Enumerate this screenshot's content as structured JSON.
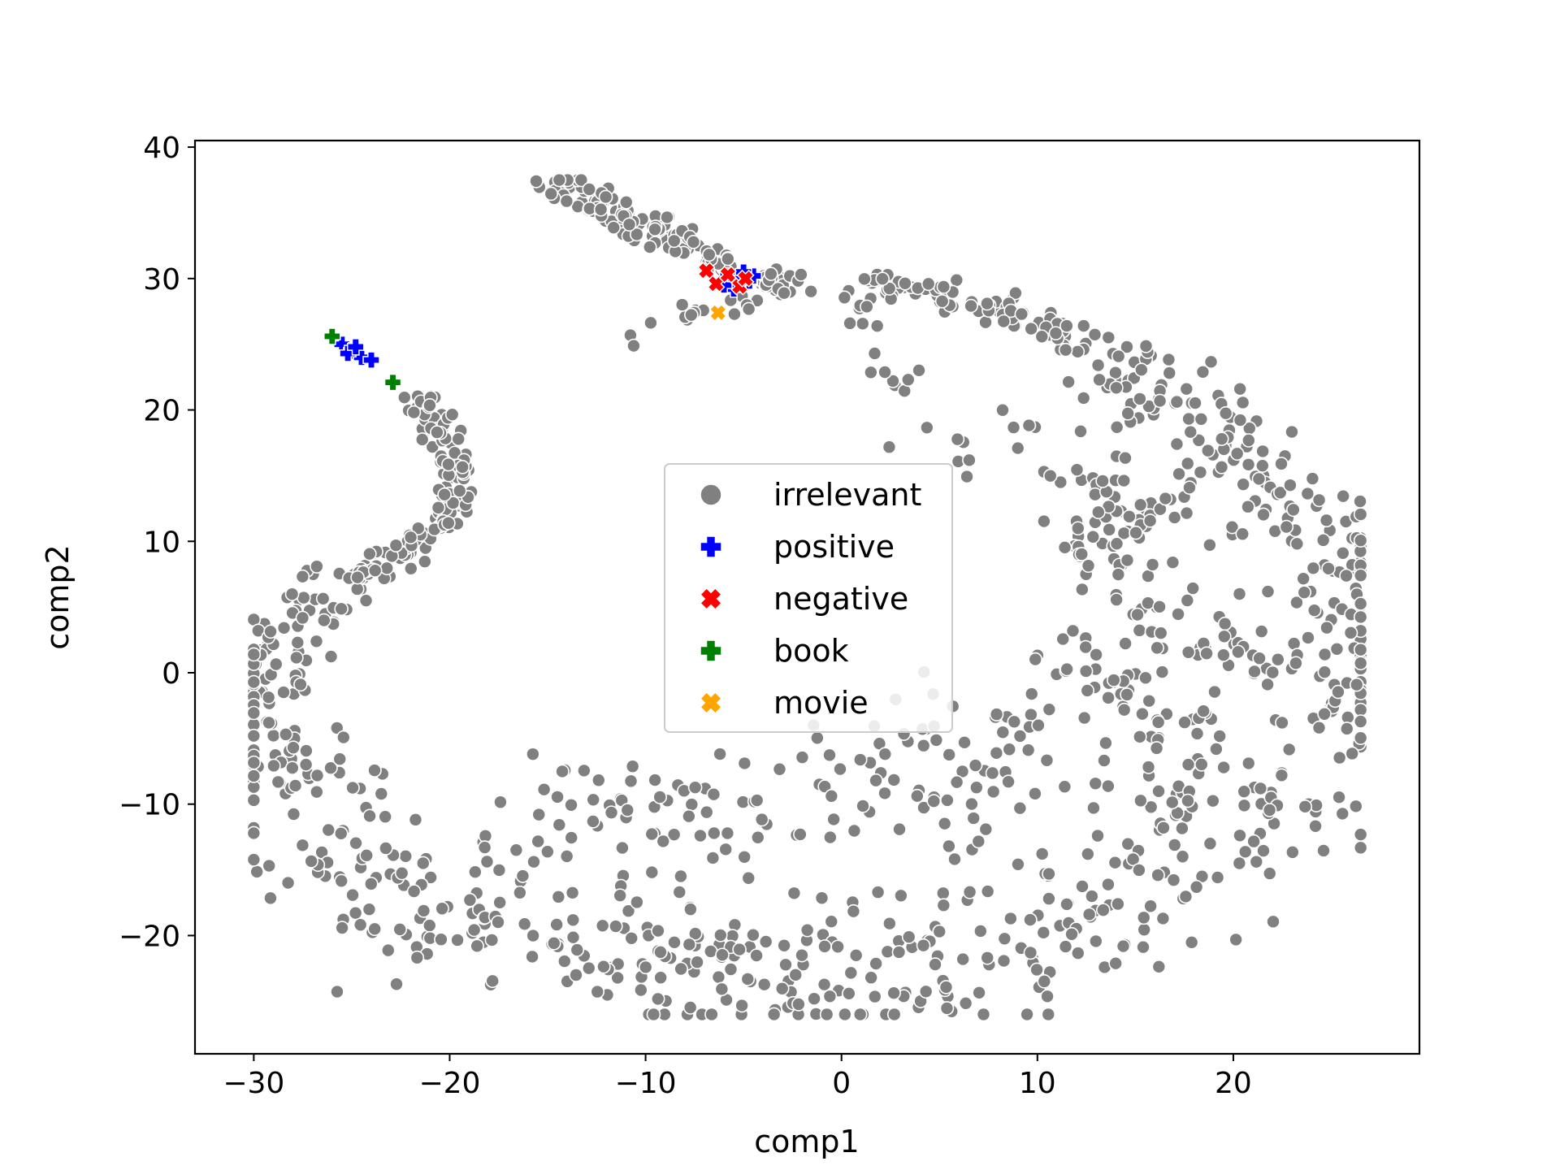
{
  "chart_data": {
    "type": "scatter",
    "title": "",
    "xlabel": "comp1",
    "ylabel": "comp2",
    "xlim": [
      -33,
      29.5
    ],
    "ylim": [
      -29,
      40.5
    ],
    "xticks": [
      -30,
      -20,
      -10,
      0,
      10,
      20
    ],
    "yticks": [
      -20,
      -10,
      0,
      10,
      20,
      30,
      40
    ],
    "xtick_labels": [
      "−30",
      "−20",
      "−10",
      "0",
      "10",
      "20"
    ],
    "ytick_labels": [
      "−20",
      "−10",
      "0",
      "10",
      "20",
      "30",
      "40"
    ],
    "grid": false,
    "legend_position": "center",
    "irrelevant_point_count": 1500,
    "series": [
      {
        "name": "irrelevant",
        "marker": "circle",
        "color": "#808080",
        "description": "approx. 1500 points forming a spiral band: a thin arm from about (-15, 37) to (-3, 29.5), a thin arm from (-22, 21) curving down through (-19.5, 14) to (-26, 6), a dense band along the bottom from (-30, 0) through (0, -20) to (25, -8), rising up the right side to (26, 5), and an upper band from (0, 29.5) to (22, 15)",
        "points": [
          [
            -14.6,
            37.2
          ],
          [
            -13.0,
            36.2
          ],
          [
            -11.5,
            35.0
          ],
          [
            -10.0,
            34.0
          ],
          [
            -8.5,
            33.0
          ],
          [
            -7.0,
            32.0
          ],
          [
            -3.5,
            29.8
          ],
          [
            -2.5,
            29.5
          ],
          [
            -21.5,
            21.0
          ],
          [
            -20.5,
            19.0
          ],
          [
            -19.8,
            16.5
          ],
          [
            -19.5,
            14.0
          ],
          [
            -20.2,
            12.0
          ],
          [
            -21.5,
            10.0
          ],
          [
            -23.5,
            8.5
          ],
          [
            -26.0,
            6.0
          ],
          [
            -28.0,
            3.5
          ],
          [
            -29.5,
            0.5
          ],
          [
            -30.0,
            -2.0
          ],
          [
            -29.0,
            -6.0
          ],
          [
            -28.0,
            -10.0
          ],
          [
            -26.5,
            -13.5
          ],
          [
            -24.0,
            -16.0
          ],
          [
            -21.0,
            -18.0
          ],
          [
            -18.0,
            -19.5
          ],
          [
            -15.0,
            -20.5
          ],
          [
            -12.0,
            -21.5
          ],
          [
            -9.0,
            -22.5
          ],
          [
            -6.0,
            -23.0
          ],
          [
            -3.0,
            -23.5
          ],
          [
            0.0,
            -23.0
          ],
          [
            3.0,
            -22.5
          ],
          [
            6.0,
            -22.0
          ],
          [
            9.0,
            -20.5
          ],
          [
            12.0,
            -18.5
          ],
          [
            15.0,
            -16.0
          ],
          [
            18.0,
            -13.5
          ],
          [
            21.0,
            -11.0
          ],
          [
            23.5,
            -8.0
          ],
          [
            25.0,
            -4.0
          ],
          [
            26.0,
            0.5
          ],
          [
            26.5,
            5.0
          ],
          [
            25.5,
            9.0
          ],
          [
            23.5,
            12.5
          ],
          [
            21.5,
            15.5
          ],
          [
            19.5,
            18.5
          ],
          [
            17.0,
            21.0
          ],
          [
            14.5,
            23.0
          ],
          [
            12.0,
            25.0
          ],
          [
            9.0,
            27.0
          ],
          [
            6.0,
            28.5
          ],
          [
            3.0,
            29.5
          ],
          [
            0.0,
            29.5
          ],
          [
            12.0,
            0.5
          ],
          [
            15.0,
            -2.0
          ],
          [
            18.0,
            -6.0
          ],
          [
            8.0,
            -4.0
          ],
          [
            5.0,
            -8.0
          ],
          [
            10.0,
            -10.0
          ],
          [
            -15.0,
            -11.0
          ],
          [
            -13.0,
            -10.5
          ],
          [
            -8.0,
            -11.5
          ],
          [
            -4.0,
            -12.0
          ],
          [
            14.0,
            8.0
          ],
          [
            13.0,
            12.0
          ],
          [
            15.0,
            14.0
          ],
          [
            16.0,
            4.0
          ],
          [
            20.0,
            0.5
          ],
          [
            22.0,
            8.0
          ]
        ]
      },
      {
        "name": "positive",
        "marker": "plus",
        "color": "#0000ff",
        "points": [
          [
            -25.5,
            25.0
          ],
          [
            -25.0,
            24.5
          ],
          [
            -24.5,
            24.0
          ],
          [
            -24.0,
            23.8
          ],
          [
            -25.2,
            24.3
          ],
          [
            -24.8,
            24.8
          ],
          [
            -5.8,
            30.2
          ],
          [
            -5.2,
            30.0
          ],
          [
            -4.7,
            29.8
          ],
          [
            -5.5,
            29.2
          ],
          [
            -4.5,
            30.2
          ],
          [
            -5.0,
            30.5
          ],
          [
            -6.0,
            29.5
          ]
        ]
      },
      {
        "name": "negative",
        "marker": "x",
        "color": "#ff0000",
        "points": [
          [
            -6.9,
            30.6
          ],
          [
            -6.4,
            29.6
          ],
          [
            -5.8,
            30.3
          ],
          [
            -5.2,
            29.4
          ],
          [
            -4.9,
            30.0
          ]
        ]
      },
      {
        "name": "book",
        "marker": "plus",
        "color": "#008000",
        "points": [
          [
            -26.0,
            25.6
          ],
          [
            -22.9,
            22.1
          ]
        ]
      },
      {
        "name": "movie",
        "marker": "x",
        "color": "#ffa500",
        "points": [
          [
            -6.3,
            27.4
          ]
        ]
      }
    ]
  }
}
